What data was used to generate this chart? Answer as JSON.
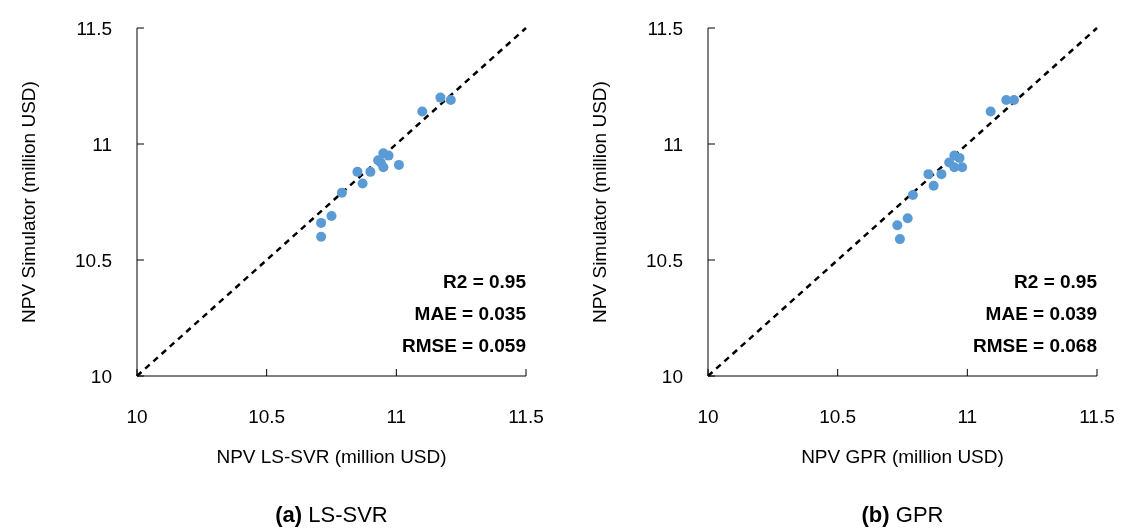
{
  "chart_data": [
    {
      "type": "scatter",
      "title": "(a) LS-SVR",
      "xlabel": "NPV LS-SVR (million USD)",
      "ylabel": "NPV Simulator (million USD)",
      "annotations": [
        "R2 = 0.95",
        "MAE = 0.035",
        "RMSE = 0.059"
      ],
      "xlim": [
        10,
        11.5
      ],
      "ylim": [
        10,
        11.5
      ],
      "xticks": [
        10,
        10.5,
        11,
        11.5
      ],
      "yticks": [
        10,
        10.5,
        11,
        11.5
      ],
      "grid": false,
      "marker": "circle",
      "series": [
        {
          "type": "line",
          "color": "#000000",
          "line_style": "dashed",
          "marker": "none",
          "x": [
            10,
            11.5
          ],
          "values": [
            10,
            11.5
          ]
        },
        {
          "type": "scatter",
          "color": "#5b9bd5",
          "x": [
            11.17,
            11.21,
            11.1,
            10.95,
            10.97,
            10.93,
            10.94,
            10.95,
            11.01,
            10.9,
            10.85,
            10.87,
            10.79,
            10.75,
            10.71,
            10.71
          ],
          "values": [
            11.2,
            11.19,
            11.14,
            10.96,
            10.95,
            10.93,
            10.92,
            10.9,
            10.91,
            10.88,
            10.88,
            10.83,
            10.79,
            10.69,
            10.66,
            10.6
          ]
        }
      ]
    },
    {
      "type": "scatter",
      "title": "(b) GPR",
      "xlabel": "NPV GPR (million USD)",
      "ylabel": "NPV Simulator (million USD)",
      "annotations": [
        "R2 = 0.95",
        "MAE = 0.039",
        "RMSE = 0.068"
      ],
      "xlim": [
        10,
        11.5
      ],
      "ylim": [
        10,
        11.5
      ],
      "xticks": [
        10,
        10.5,
        11,
        11.5
      ],
      "yticks": [
        10,
        10.5,
        11,
        11.5
      ],
      "grid": false,
      "marker": "circle",
      "series": [
        {
          "type": "line",
          "color": "#000000",
          "line_style": "dashed",
          "marker": "none",
          "x": [
            10,
            11.5
          ],
          "values": [
            10,
            11.5
          ]
        },
        {
          "type": "scatter",
          "color": "#5b9bd5",
          "x": [
            11.15,
            11.18,
            11.09,
            10.95,
            10.97,
            10.93,
            10.95,
            10.98,
            10.9,
            10.85,
            10.87,
            10.79,
            10.77,
            10.73,
            10.74
          ],
          "values": [
            11.19,
            11.19,
            11.14,
            10.95,
            10.94,
            10.92,
            10.9,
            10.9,
            10.87,
            10.87,
            10.82,
            10.78,
            10.68,
            10.65,
            10.59
          ]
        }
      ]
    }
  ]
}
